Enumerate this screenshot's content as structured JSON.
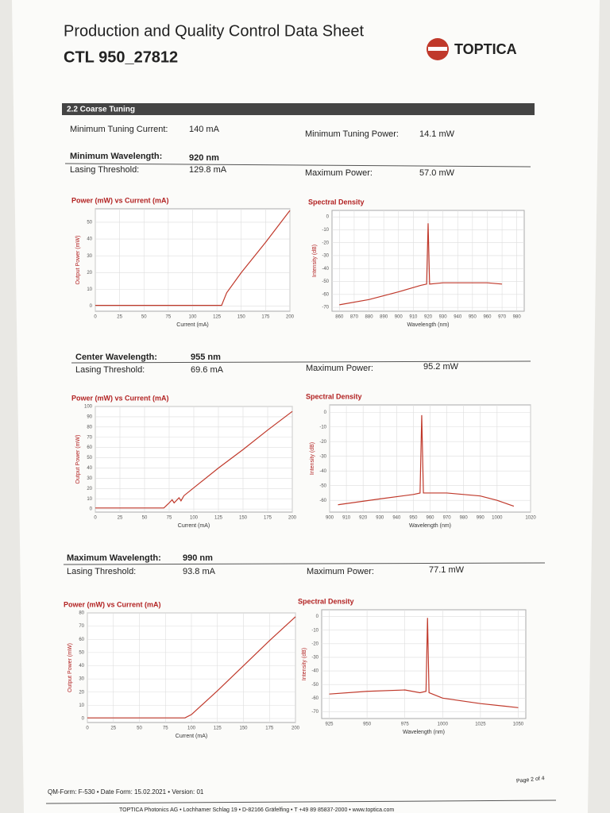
{
  "header": {
    "title": "Production and Quality Control Data Sheet",
    "model": "CTL 950_27812",
    "logo": "TOPTICA"
  },
  "section": "2.2 Coarse Tuning",
  "blocks": [
    {
      "rows": [
        {
          "label": "Minimum Tuning Current:",
          "value": "140 mA"
        },
        {
          "label": "Minimum Tuning Power:",
          "value": "14.1 mW"
        },
        {
          "label": "Minimum Wavelength:",
          "value": "920 nm"
        },
        {
          "label": "Lasing Threshold:",
          "value": "129.8 mA"
        },
        {
          "label": "Maximum Power:",
          "value": "57.0 mW"
        }
      ]
    },
    {
      "rows": [
        {
          "label": "Center Wavelength:",
          "value": "955 nm"
        },
        {
          "label": "Lasing Threshold:",
          "value": "69.6 mA"
        },
        {
          "label": "Maximum Power:",
          "value": "95.2 mW"
        }
      ]
    },
    {
      "rows": [
        {
          "label": "Maximum Wavelength:",
          "value": "990 nm"
        },
        {
          "label": "Lasing Threshold:",
          "value": "93.8 mA"
        },
        {
          "label": "Maximum Power:",
          "value": "77.1 mW"
        }
      ]
    }
  ],
  "chart_data": [
    {
      "type": "line",
      "title": "Power (mW) vs Current (mA)",
      "x_label": "Current (mA)",
      "y_label": "Output Power (mW)",
      "xlim": [
        0,
        200
      ],
      "ylim": [
        -3,
        58
      ],
      "xticks": [
        0,
        25,
        50,
        75,
        100,
        125,
        150,
        175,
        200
      ],
      "yticks": [
        0,
        10,
        20,
        30,
        40,
        50
      ],
      "grid": true,
      "series": [
        {
          "color": "#c0392b",
          "x": [
            0,
            129.8,
            135,
            150,
            175,
            200
          ],
          "values": [
            0.5,
            0.5,
            8,
            20,
            38,
            57
          ]
        }
      ]
    },
    {
      "type": "line",
      "title": "Spectral Density",
      "x_label": "Wavelength (nm)",
      "y_label": "Intensity (dB)",
      "xlim": [
        855,
        985
      ],
      "ylim": [
        -73,
        5
      ],
      "xticks": [
        860,
        870,
        880,
        890,
        900,
        910,
        920,
        930,
        940,
        950,
        960,
        970,
        980
      ],
      "yticks": [
        0,
        -10,
        -20,
        -30,
        -40,
        -50,
        -60,
        -70
      ],
      "grid": true,
      "series": [
        {
          "color": "#c0392b",
          "x": [
            860,
            880,
            900,
            915,
            919,
            920,
            921,
            930,
            960,
            970
          ],
          "values": [
            -68,
            -64,
            -58,
            -53,
            -52,
            -5,
            -52,
            -51,
            -51,
            -52
          ]
        }
      ]
    },
    {
      "type": "line",
      "title": "Power (mW) vs Current (mA)",
      "x_label": "Current (mA)",
      "y_label": "Output Power (mW)",
      "xlim": [
        0,
        200
      ],
      "ylim": [
        -3,
        100
      ],
      "xticks": [
        0,
        25,
        50,
        75,
        100,
        125,
        150,
        175,
        200
      ],
      "yticks": [
        0,
        10,
        20,
        30,
        40,
        50,
        60,
        70,
        80,
        90,
        100
      ],
      "grid": true,
      "series": [
        {
          "color": "#c0392b",
          "x": [
            0,
            69.6,
            75,
            78,
            80,
            85,
            87,
            90,
            125,
            150,
            175,
            200
          ],
          "values": [
            1,
            1,
            6,
            9,
            6,
            11,
            8,
            13,
            40,
            58,
            77,
            95.2
          ]
        }
      ]
    },
    {
      "type": "line",
      "title": "Spectral Density",
      "x_label": "Wavelength (nm)",
      "y_label": "Intensity (dB)",
      "xlim": [
        900,
        1020
      ],
      "ylim": [
        -68,
        5
      ],
      "xticks": [
        900,
        910,
        920,
        930,
        940,
        950,
        960,
        970,
        980,
        990,
        1000,
        1020
      ],
      "yticks": [
        0,
        -10,
        -20,
        -30,
        -40,
        -50,
        -60
      ],
      "grid": true,
      "series": [
        {
          "color": "#c0392b",
          "x": [
            905,
            930,
            950,
            954,
            955,
            956,
            970,
            990,
            1000,
            1010
          ],
          "values": [
            -63,
            -59,
            -56,
            -55,
            -2,
            -55,
            -55,
            -57,
            -60,
            -64
          ]
        }
      ]
    },
    {
      "type": "line",
      "title": "Power (mW) vs Current (mA)",
      "x_label": "Current (mA)",
      "y_label": "Output Power (mW)",
      "xlim": [
        0,
        200
      ],
      "ylim": [
        -3,
        80
      ],
      "xticks": [
        0,
        25,
        50,
        75,
        100,
        125,
        150,
        175,
        200
      ],
      "yticks": [
        0,
        10,
        20,
        30,
        40,
        50,
        60,
        70,
        80
      ],
      "grid": true,
      "series": [
        {
          "color": "#c0392b",
          "x": [
            0,
            93.8,
            100,
            125,
            150,
            175,
            200
          ],
          "values": [
            0.5,
            0.5,
            3,
            21,
            40,
            59,
            77.1
          ]
        }
      ]
    },
    {
      "type": "line",
      "title": "Spectral Density",
      "x_label": "Wavelength (nm)",
      "y_label": "Intensity (dB)",
      "xlim": [
        920,
        1055
      ],
      "ylim": [
        -75,
        5
      ],
      "xticks": [
        925,
        950,
        975,
        1000,
        1025,
        1050
      ],
      "yticks": [
        0,
        -10,
        -20,
        -30,
        -40,
        -50,
        -60,
        -70
      ],
      "grid": true,
      "series": [
        {
          "color": "#c0392b",
          "x": [
            925,
            950,
            975,
            985,
            989,
            990,
            991,
            1000,
            1025,
            1050
          ],
          "values": [
            -57,
            -55,
            -54,
            -56,
            -55,
            -1,
            -56,
            -60,
            -64,
            -67
          ]
        }
      ]
    }
  ],
  "footer": {
    "form": "QM-Form: F-530 • Date Form: 15.02.2021 • Version: 01",
    "address": "TOPTICA Photonics AG • Lochhamer Schlag 19 • D-82166 Gräfelfing • T +49 89 85837-2000 • www.toptica.com",
    "page": "Page 2 of 4"
  }
}
